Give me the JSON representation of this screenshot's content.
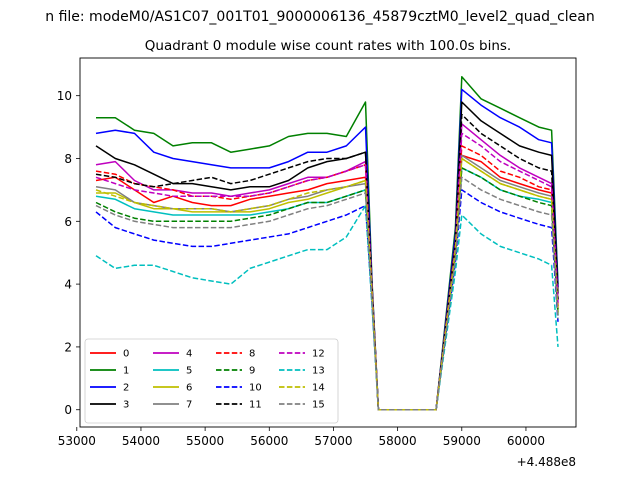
{
  "figure": {
    "suptitle": "n file: modeM0/AS1C07_001T01_9000006136_45879cztM0_level2_quad_clean",
    "title": "Quadrant 0 module wise count rates with 100.0s bins.",
    "offset_text": "+4.488e8"
  },
  "chart_data": {
    "type": "line",
    "title": "Quadrant 0 module wise count rates with 100.0s bins.",
    "xlabel": "",
    "ylabel": "",
    "x_offset": 448800000,
    "xlim": [
      53050,
      60780
    ],
    "ylim": [
      -0.55,
      11.2
    ],
    "xticks": [
      53000,
      54000,
      55000,
      56000,
      57000,
      58000,
      59000,
      60000
    ],
    "xticklabels": [
      "53000",
      "54000",
      "55000",
      "56000",
      "57000",
      "58000",
      "59000",
      "60000"
    ],
    "yticks": [
      0,
      2,
      4,
      6,
      8,
      10
    ],
    "yticklabels": [
      "0",
      "2",
      "4",
      "6",
      "8",
      "10"
    ],
    "grid": false,
    "legend_placement": "lower-left",
    "legend_columns": 4,
    "x": [
      53300,
      53600,
      53900,
      54200,
      54500,
      54800,
      55100,
      55400,
      55700,
      56000,
      56300,
      56600,
      56900,
      57200,
      57500,
      57600,
      57700,
      57800,
      58200,
      58600,
      58900,
      59000,
      59300,
      59600,
      59900,
      60200,
      60400,
      60500
    ],
    "series": [
      {
        "name": "0",
        "color": "#ff0000",
        "dash": "solid",
        "values": [
          7.3,
          7.4,
          7.0,
          6.6,
          6.8,
          6.6,
          6.5,
          6.5,
          6.7,
          6.8,
          6.9,
          7.0,
          7.2,
          7.3,
          7.4,
          3.8,
          0.0,
          0.0,
          0.0,
          0.0,
          5.2,
          8.1,
          7.9,
          7.4,
          7.2,
          7.0,
          6.9,
          3.2
        ]
      },
      {
        "name": "1",
        "color": "#008000",
        "dash": "solid",
        "values": [
          9.3,
          9.3,
          8.9,
          8.8,
          8.4,
          8.5,
          8.5,
          8.2,
          8.3,
          8.4,
          8.7,
          8.8,
          8.8,
          8.7,
          9.8,
          4.1,
          0.0,
          0.0,
          0.0,
          0.0,
          5.8,
          10.6,
          9.9,
          9.6,
          9.3,
          9.0,
          8.9,
          4.0
        ]
      },
      {
        "name": "2",
        "color": "#0000ff",
        "dash": "solid",
        "values": [
          8.8,
          8.9,
          8.8,
          8.2,
          8.0,
          7.9,
          7.8,
          7.7,
          7.7,
          7.7,
          7.9,
          8.2,
          8.2,
          8.4,
          9.0,
          4.0,
          0.0,
          0.0,
          0.0,
          0.0,
          5.6,
          10.2,
          9.7,
          9.3,
          9.0,
          8.6,
          8.5,
          3.9
        ]
      },
      {
        "name": "3",
        "color": "#000000",
        "dash": "solid",
        "values": [
          8.4,
          8.0,
          7.8,
          7.5,
          7.2,
          7.2,
          7.1,
          7.0,
          7.1,
          7.1,
          7.3,
          7.7,
          7.9,
          8.0,
          8.2,
          3.9,
          0.0,
          0.0,
          0.0,
          0.0,
          5.4,
          9.8,
          9.2,
          8.8,
          8.4,
          8.2,
          8.1,
          3.7
        ]
      },
      {
        "name": "4",
        "color": "#bf00bf",
        "dash": "solid",
        "values": [
          7.8,
          7.9,
          7.3,
          7.0,
          7.0,
          6.9,
          6.9,
          6.8,
          6.9,
          7.0,
          7.2,
          7.4,
          7.4,
          7.6,
          7.9,
          3.9,
          0.0,
          0.0,
          0.0,
          0.0,
          5.3,
          9.1,
          8.6,
          8.1,
          7.7,
          7.4,
          7.2,
          3.5
        ]
      },
      {
        "name": "5",
        "color": "#00bfbf",
        "dash": "solid",
        "values": [
          6.8,
          6.7,
          6.4,
          6.3,
          6.2,
          6.2,
          6.2,
          6.2,
          6.2,
          6.3,
          6.4,
          6.6,
          6.6,
          6.8,
          7.0,
          3.6,
          0.0,
          0.0,
          0.0,
          0.0,
          5.0,
          7.7,
          7.4,
          7.0,
          6.8,
          6.7,
          6.6,
          3.1
        ]
      },
      {
        "name": "6",
        "color": "#bfbf00",
        "dash": "solid",
        "values": [
          6.9,
          6.9,
          6.6,
          6.4,
          6.4,
          6.3,
          6.3,
          6.3,
          6.3,
          6.4,
          6.6,
          6.7,
          6.9,
          7.1,
          7.3,
          3.7,
          0.0,
          0.0,
          0.0,
          0.0,
          5.1,
          8.0,
          7.6,
          7.2,
          7.0,
          6.8,
          6.7,
          3.1
        ]
      },
      {
        "name": "7",
        "color": "#808080",
        "dash": "solid",
        "values": [
          7.1,
          7.0,
          6.6,
          6.5,
          6.4,
          6.4,
          6.4,
          6.3,
          6.4,
          6.5,
          6.7,
          6.8,
          7.0,
          7.1,
          7.2,
          3.7,
          0.0,
          0.0,
          0.0,
          0.0,
          5.1,
          8.1,
          7.7,
          7.3,
          7.1,
          6.9,
          6.8,
          3.2
        ]
      },
      {
        "name": "8",
        "color": "#ff0000",
        "dash": "dashed",
        "values": [
          7.6,
          7.5,
          7.2,
          7.1,
          7.0,
          6.8,
          6.8,
          6.7,
          6.8,
          6.9,
          7.1,
          7.3,
          7.4,
          7.6,
          7.8,
          3.8,
          0.0,
          0.0,
          0.0,
          0.0,
          5.2,
          8.4,
          8.1,
          7.6,
          7.4,
          7.1,
          7.0,
          3.3
        ]
      },
      {
        "name": "9",
        "color": "#008000",
        "dash": "dashed",
        "values": [
          6.6,
          6.3,
          6.1,
          6.0,
          6.0,
          6.0,
          6.0,
          6.0,
          6.1,
          6.2,
          6.4,
          6.6,
          6.6,
          6.8,
          7.0,
          3.6,
          0.0,
          0.0,
          0.0,
          0.0,
          4.9,
          7.7,
          7.4,
          7.0,
          6.8,
          6.6,
          6.5,
          3.0
        ]
      },
      {
        "name": "10",
        "color": "#0000ff",
        "dash": "dashed",
        "values": [
          6.3,
          5.8,
          5.6,
          5.4,
          5.3,
          5.2,
          5.2,
          5.3,
          5.4,
          5.5,
          5.6,
          5.8,
          6.0,
          6.2,
          6.5,
          3.4,
          0.0,
          0.0,
          0.0,
          0.0,
          4.7,
          7.0,
          6.6,
          6.3,
          6.1,
          5.9,
          5.8,
          2.8
        ]
      },
      {
        "name": "11",
        "color": "#000000",
        "dash": "dashed",
        "values": [
          7.5,
          7.4,
          7.2,
          7.1,
          7.2,
          7.3,
          7.4,
          7.2,
          7.3,
          7.5,
          7.7,
          7.9,
          8.0,
          8.0,
          8.2,
          3.9,
          0.0,
          0.0,
          0.0,
          0.0,
          5.3,
          9.4,
          8.8,
          8.4,
          8.0,
          7.7,
          7.6,
          3.5
        ]
      },
      {
        "name": "12",
        "color": "#bf00bf",
        "dash": "dashed",
        "values": [
          7.4,
          7.2,
          7.0,
          6.9,
          6.8,
          6.8,
          6.8,
          6.8,
          6.8,
          6.9,
          7.1,
          7.3,
          7.4,
          7.6,
          7.8,
          3.8,
          0.0,
          0.0,
          0.0,
          0.0,
          5.2,
          8.8,
          8.4,
          7.9,
          7.6,
          7.3,
          7.1,
          3.4
        ]
      },
      {
        "name": "13",
        "color": "#00bfbf",
        "dash": "dashed",
        "values": [
          4.9,
          4.5,
          4.6,
          4.6,
          4.4,
          4.2,
          4.1,
          4.0,
          4.5,
          4.7,
          4.9,
          5.1,
          5.1,
          5.5,
          6.5,
          3.3,
          0.0,
          0.0,
          0.0,
          0.0,
          4.4,
          6.2,
          5.6,
          5.2,
          5.0,
          4.8,
          4.6,
          2.0
        ]
      },
      {
        "name": "14",
        "color": "#bfbf00",
        "dash": "dashed",
        "values": [
          7.0,
          6.8,
          6.6,
          6.5,
          6.4,
          6.4,
          6.4,
          6.3,
          6.4,
          6.5,
          6.7,
          6.9,
          7.0,
          7.1,
          7.3,
          3.7,
          0.0,
          0.0,
          0.0,
          0.0,
          5.1,
          8.0,
          7.6,
          7.2,
          7.0,
          6.8,
          6.7,
          3.1
        ]
      },
      {
        "name": "15",
        "color": "#808080",
        "dash": "dashed",
        "values": [
          6.5,
          6.2,
          6.0,
          5.9,
          5.8,
          5.8,
          5.8,
          5.8,
          5.9,
          6.0,
          6.2,
          6.4,
          6.5,
          6.7,
          6.9,
          3.5,
          0.0,
          0.0,
          0.0,
          0.0,
          4.8,
          7.4,
          7.0,
          6.7,
          6.5,
          6.3,
          6.2,
          2.9
        ]
      }
    ]
  }
}
